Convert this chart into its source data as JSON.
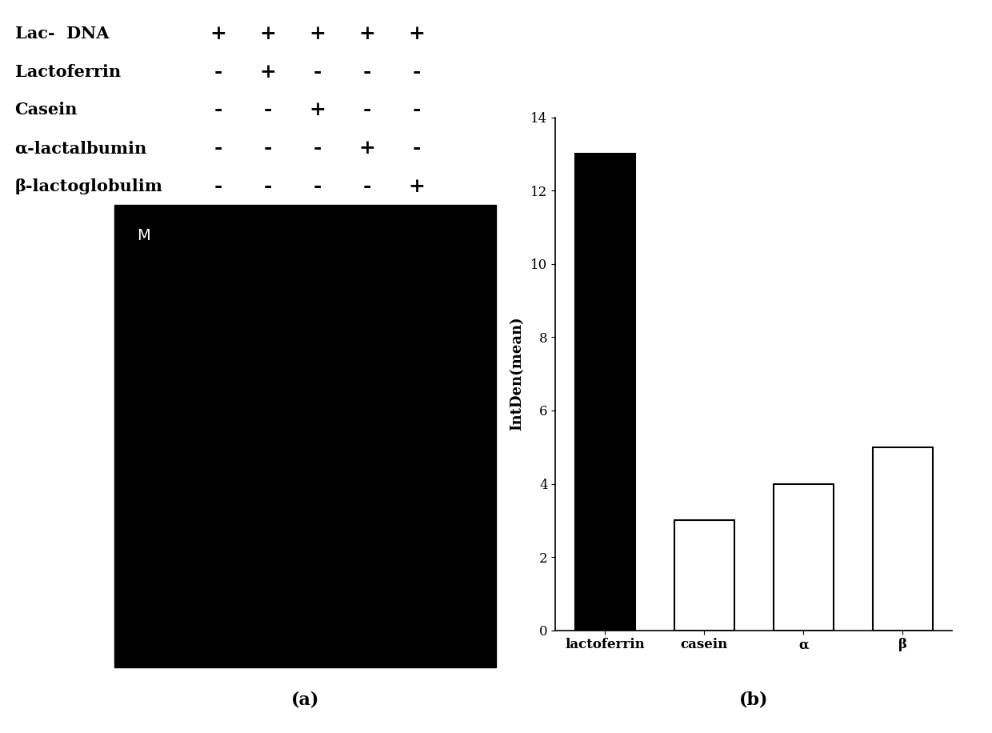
{
  "table_rows": [
    {
      "label": "Lac-  DNA",
      "values": [
        "+",
        "+",
        "+",
        "+",
        "+"
      ]
    },
    {
      "label": "Lactoferrin",
      "values": [
        "-",
        "+",
        "-",
        "-",
        "-"
      ]
    },
    {
      "label": "Casein",
      "values": [
        "-",
        "-",
        "+",
        "-",
        "-"
      ]
    },
    {
      "label": "α-lactalbumin",
      "values": [
        "-",
        "-",
        "-",
        "+",
        "-"
      ]
    },
    {
      "label": "β-lactoglobulim",
      "values": [
        "-",
        "-",
        "-",
        "-",
        "+"
      ]
    }
  ],
  "gel_label": "M",
  "gel_color": "#000000",
  "gel_label_color": "#ffffff",
  "caption_a": "(a)",
  "caption_b": "(b)",
  "bar_categories": [
    "lactoferrin",
    "casein",
    "α",
    "β"
  ],
  "bar_values": [
    13.0,
    3.0,
    4.0,
    5.0
  ],
  "bar_colors": [
    "#000000",
    "#ffffff",
    "#ffffff",
    "#ffffff"
  ],
  "bar_edgecolors": [
    "#000000",
    "#000000",
    "#000000",
    "#000000"
  ],
  "ylabel": "IntDen(mean)",
  "ylim": [
    0,
    14
  ],
  "yticks": [
    0,
    2,
    4,
    6,
    8,
    10,
    12,
    14
  ],
  "table_font_size": 15,
  "axis_font_size": 12,
  "caption_font_size": 16,
  "background_color": "#ffffff"
}
